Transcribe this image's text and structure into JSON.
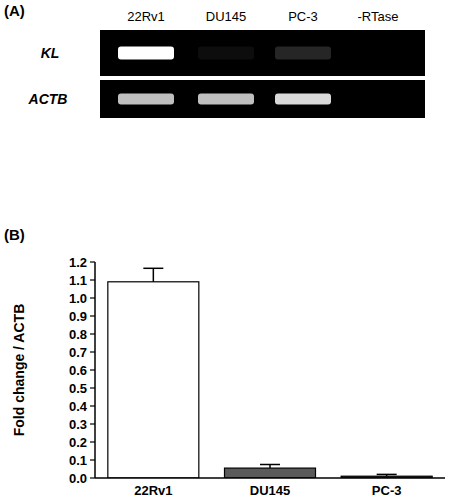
{
  "panel_a": {
    "panel_label": "(A)",
    "lanes": [
      "22Rv1",
      "DU145",
      "PC-3",
      "-RTase"
    ],
    "rows": [
      {
        "label": "KL",
        "intensity": [
          1.0,
          0.05,
          0.15,
          0.0
        ]
      },
      {
        "label": "ACTB",
        "intensity": [
          0.75,
          0.75,
          0.85,
          0.0
        ]
      }
    ]
  },
  "chart_data": {
    "type": "bar",
    "panel_label": "(B)",
    "y_label": "Fold change / ACTB",
    "categories": [
      "22Rv1",
      "DU145",
      "PC-3"
    ],
    "values": [
      1.09,
      0.055,
      0.01
    ],
    "errors": [
      0.075,
      0.02,
      0.01
    ],
    "colors": [
      "#ffffff",
      "#5a5a5a",
      "#3a3a3a"
    ],
    "ylim": [
      0,
      1.2
    ],
    "yticks": [
      {
        "value": 0,
        "label": "0.0"
      },
      0.1,
      0.2,
      0.3,
      0.4,
      0.5,
      0.6,
      0.7,
      0.8,
      0.9,
      {
        "value": 1,
        "label": "1.0"
      },
      1.1,
      1.2
    ],
    "grid": false
  }
}
